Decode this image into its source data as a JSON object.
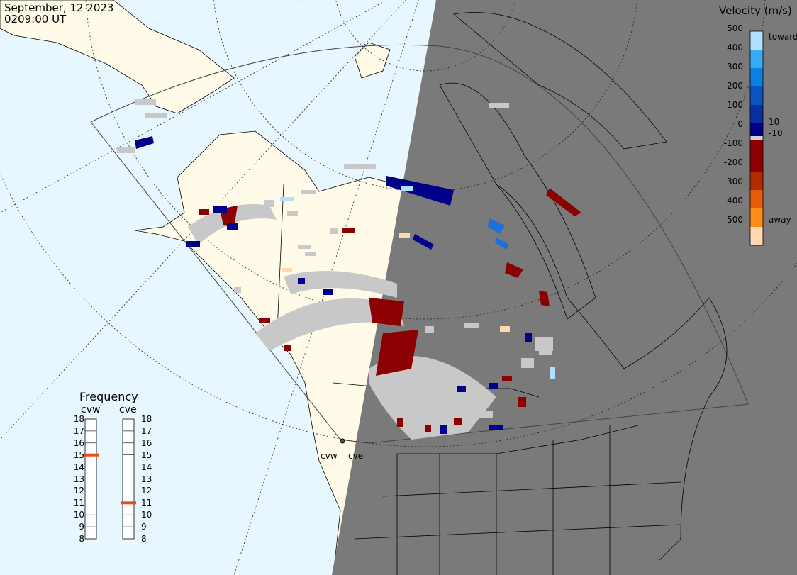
{
  "header": {
    "date": "September, 12 2023",
    "time": "0209:00 UT"
  },
  "colorbar": {
    "title": "Velocity (m/s)",
    "ticks": [
      "500",
      "400",
      "300",
      "200",
      "100",
      "0",
      "-100",
      "-200",
      "-300",
      "-400",
      "-500"
    ],
    "side_labels": {
      "toward": "toward",
      "pos10": "10",
      "neg10": "-10",
      "away": "away"
    },
    "colors": [
      "#ffd7b0",
      "#ff8c1a",
      "#e85a0a",
      "#b32b00",
      "#8b0000",
      "#8b0000",
      "#d0d0d0",
      "#00008b",
      "#0a2fa0",
      "#0a55c0",
      "#0a80e0",
      "#3aaaf5",
      "#b0e0ff"
    ]
  },
  "frequency": {
    "title": "Frequency",
    "radars": [
      {
        "code": "cvw",
        "value_mhz": 15
      },
      {
        "code": "cve",
        "value_mhz": 11
      }
    ],
    "scale": [
      "18",
      "17",
      "16",
      "15",
      "14",
      "13",
      "12",
      "11",
      "10",
      "9",
      "8"
    ],
    "marker_color": "#e8501a"
  },
  "sites": {
    "west": "cvw",
    "east": "cve"
  },
  "map": {
    "ocean_color": "#e8f6fe",
    "land_color": "#fffbe8",
    "night_color": "#7a7a7a",
    "low_velocity_color": "#c8c8c8"
  }
}
